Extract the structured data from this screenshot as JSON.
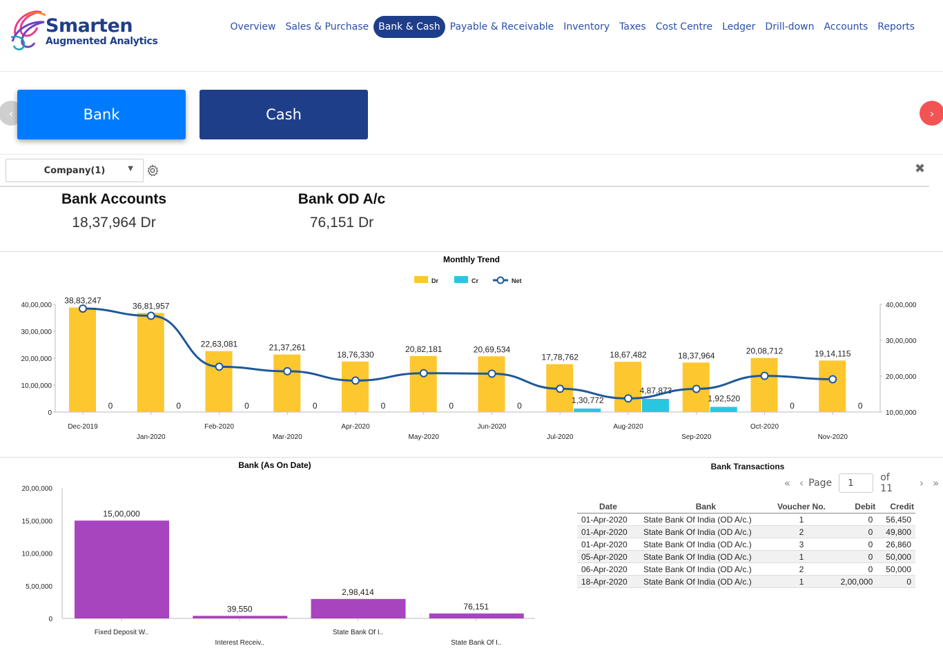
{
  "brand": {
    "name": "Smarten",
    "tagline": "Augmented Analytics"
  },
  "nav": [
    {
      "label": "Overview",
      "active": false
    },
    {
      "label": "Sales & Purchase",
      "active": false
    },
    {
      "label": "Bank & Cash",
      "active": true
    },
    {
      "label": "Payable & Receivable",
      "active": false
    },
    {
      "label": "Inventory",
      "active": false
    },
    {
      "label": "Taxes",
      "active": false
    },
    {
      "label": "Cost Centre",
      "active": false
    },
    {
      "label": "Ledger",
      "active": false
    },
    {
      "label": "Drill-down",
      "active": false
    },
    {
      "label": "Accounts",
      "active": false
    },
    {
      "label": "Reports",
      "active": false
    }
  ],
  "tabs": {
    "bank": "Bank",
    "cash": "Cash",
    "prev": "‹",
    "next": "›"
  },
  "filter": {
    "company": "Company(1)",
    "close": "✖"
  },
  "kpis": [
    {
      "title": "Bank Accounts",
      "value": "18,37,964 Dr"
    },
    {
      "title": "Bank OD A/c",
      "value": "76,151 Dr"
    }
  ],
  "colors": {
    "dr": "#fdc72f",
    "cr": "#29c6e0",
    "net": "#1f5799",
    "bar_purple": "#a745bf",
    "nav_active": "#1f3e8a",
    "bank_tab": "#007bff"
  },
  "chart_data": [
    {
      "type": "bar",
      "title": "Monthly Trend",
      "categories": [
        "Dec-2019",
        "Jan-2020",
        "Feb-2020",
        "Mar-2020",
        "Apr-2020",
        "May-2020",
        "Jun-2020",
        "Jul-2020",
        "Aug-2020",
        "Sep-2020",
        "Oct-2020",
        "Nov-2020"
      ],
      "series": [
        {
          "name": "Dr",
          "values": [
            3883247,
            3681957,
            2263081,
            2137261,
            1876330,
            2082181,
            2069534,
            1778762,
            1867482,
            1837964,
            2008712,
            1914115
          ],
          "labels": [
            "38,83,247",
            "36,81,957",
            "22,63,081",
            "21,37,261",
            "18,76,330",
            "20,82,181",
            "20,69,534",
            "17,78,762",
            "18,67,482",
            "18,37,964",
            "20,08,712",
            "19,14,115"
          ]
        },
        {
          "name": "Cr",
          "values": [
            0,
            0,
            0,
            0,
            0,
            0,
            0,
            130772,
            487873,
            192520,
            0,
            0
          ],
          "labels": [
            "0",
            "0",
            "0",
            "0",
            "0",
            "0",
            "0",
            "1,30,772",
            "4,87,873",
            "1,92,520",
            "0",
            "0"
          ]
        },
        {
          "name": "Net",
          "type": "line",
          "axis": "right",
          "values": [
            3883247,
            3681957,
            2263081,
            2137261,
            1876330,
            2082181,
            2069534,
            1648000,
            1380000,
            1645000,
            2008712,
            1914115
          ]
        }
      ],
      "ylim": [
        0,
        4000000
      ],
      "yticks": [
        "0",
        "10,00,000",
        "20,00,000",
        "30,00,000",
        "40,00,000"
      ],
      "y2lim": [
        1000000,
        4000000
      ],
      "y2ticks": [
        "10,00,000",
        "20,00,000",
        "30,00,000",
        "40,00,000"
      ],
      "legend": "top-center"
    },
    {
      "type": "bar",
      "title": "Bank (As On Date)",
      "categories": [
        "Fixed Deposit W..",
        "Interest Receiv..",
        "State Bank Of I..",
        "State Bank Of I.."
      ],
      "values": [
        1500000,
        39550,
        298414,
        76151
      ],
      "labels": [
        "15,00,000",
        "39,550",
        "2,98,414",
        "76,151"
      ],
      "ylim": [
        0,
        2000000
      ],
      "yticks": [
        "0",
        "5,00,000",
        "10,00,000",
        "15,00,000",
        "20,00,000"
      ]
    }
  ],
  "transactions": {
    "title": "Bank Transactions",
    "page_label": "Page",
    "page": "1",
    "of_label": "of 11",
    "columns": [
      "Date",
      "Bank",
      "Voucher No.",
      "Debit",
      "Credit"
    ],
    "rows": [
      [
        "01-Apr-2020",
        "State Bank Of India (OD A/c.)",
        "1",
        "0",
        "56,450"
      ],
      [
        "01-Apr-2020",
        "State Bank Of India (OD A/c.)",
        "2",
        "0",
        "49,800"
      ],
      [
        "01-Apr-2020",
        "State Bank Of India (OD A/c.)",
        "3",
        "0",
        "26,860"
      ],
      [
        "05-Apr-2020",
        "State Bank Of India (OD A/c.)",
        "1",
        "0",
        "50,000"
      ],
      [
        "06-Apr-2020",
        "State Bank Of India (OD A/c.)",
        "2",
        "0",
        "50,000"
      ],
      [
        "18-Apr-2020",
        "State Bank Of India (OD A/c.)",
        "1",
        "2,00,000",
        "0"
      ]
    ]
  }
}
